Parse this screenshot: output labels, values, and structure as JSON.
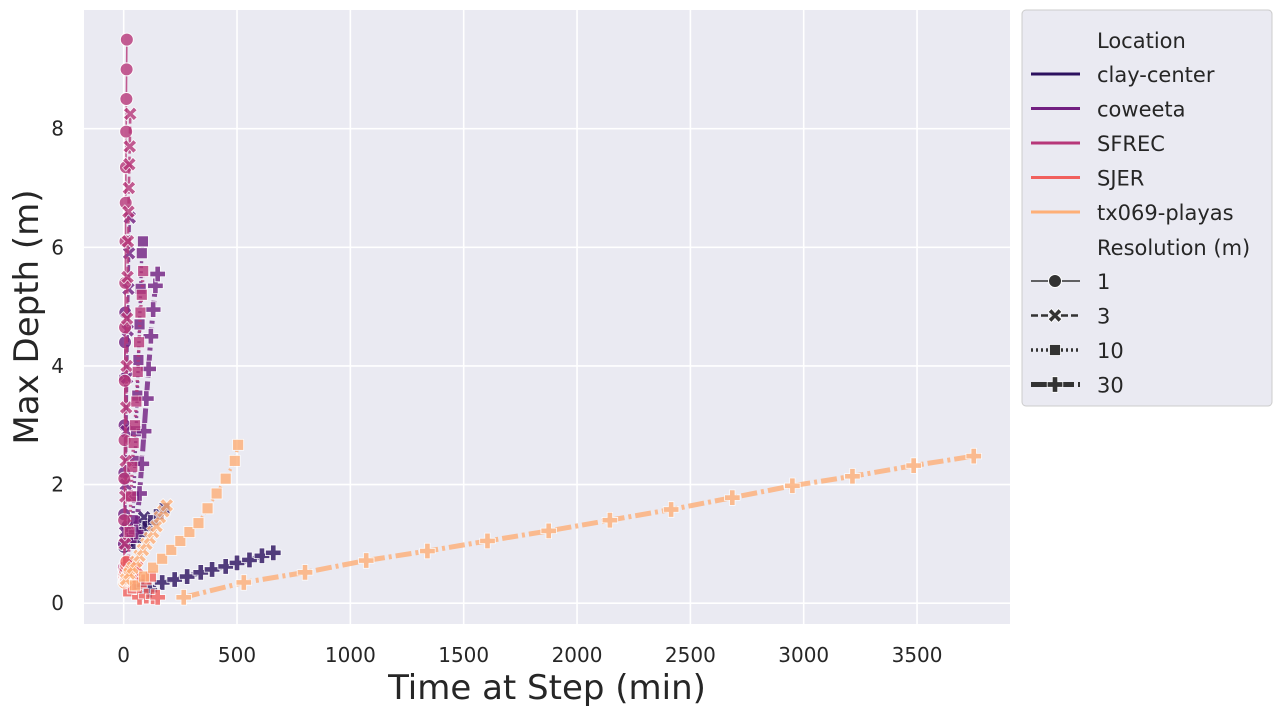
{
  "chart_data": {
    "type": "line",
    "xlabel": "Time at Step (min)",
    "ylabel": "Max Depth (m)",
    "xlim": [
      -175,
      3910
    ],
    "ylim": [
      -0.35,
      10.0
    ],
    "xticks": [
      0,
      500,
      1000,
      1500,
      2000,
      2500,
      3000,
      3500
    ],
    "yticks": [
      0,
      2,
      4,
      6,
      8
    ],
    "grid": true,
    "legend_position": "outside-right",
    "legend": {
      "hue_title": "Location",
      "locations": [
        {
          "name": "clay-center",
          "color": "#2c115f"
        },
        {
          "name": "coweeta",
          "color": "#721f81"
        },
        {
          "name": "SFREC",
          "color": "#b73779"
        },
        {
          "name": "SJER",
          "color": "#f1605d"
        },
        {
          "name": "tx069-playas",
          "color": "#feaf77"
        }
      ],
      "style_title": "Resolution (m)",
      "resolutions": [
        "1",
        "3",
        "10",
        "30"
      ]
    },
    "series": [
      {
        "location": "clay-center",
        "resolution": "1",
        "x": [
          2,
          4,
          6,
          8,
          10,
          12,
          14,
          16
        ],
        "y": [
          0.95,
          1.0,
          1.05,
          1.1,
          1.15,
          1.2,
          1.25,
          1.3
        ]
      },
      {
        "location": "clay-center",
        "resolution": "3",
        "x": [
          10,
          20,
          30,
          40,
          50,
          60,
          70,
          80,
          90
        ],
        "y": [
          1.0,
          1.05,
          1.1,
          1.15,
          1.2,
          1.25,
          1.3,
          1.38,
          1.45
        ]
      },
      {
        "location": "clay-center",
        "resolution": "10",
        "x": [
          30,
          55,
          80,
          105,
          130,
          155,
          180
        ],
        "y": [
          1.0,
          1.1,
          1.2,
          1.3,
          1.4,
          1.5,
          1.6
        ]
      },
      {
        "location": "clay-center",
        "resolution": "30",
        "x": [
          80,
          115,
          170,
          225,
          280,
          340,
          390,
          450,
          500,
          555,
          610,
          660
        ],
        "y": [
          0.28,
          0.22,
          0.35,
          0.4,
          0.45,
          0.52,
          0.57,
          0.62,
          0.68,
          0.73,
          0.8,
          0.85
        ]
      },
      {
        "location": "coweeta",
        "resolution": "1",
        "x": [
          1,
          2,
          3,
          4,
          5,
          6,
          7
        ],
        "y": [
          1.0,
          1.5,
          2.2,
          3.0,
          3.8,
          4.4,
          4.9
        ]
      },
      {
        "location": "coweeta",
        "resolution": "3",
        "x": [
          6,
          9,
          12,
          15,
          18,
          21,
          24,
          27
        ],
        "y": [
          1.2,
          2.0,
          2.9,
          3.8,
          4.6,
          5.3,
          5.9,
          6.5
        ]
      },
      {
        "location": "coweeta",
        "resolution": "10",
        "x": [
          35,
          40,
          45,
          50,
          55,
          60,
          65,
          70,
          75,
          80,
          85
        ],
        "y": [
          1.1,
          1.4,
          1.8,
          2.4,
          2.9,
          3.5,
          4.1,
          4.7,
          5.3,
          5.9,
          6.1
        ]
      },
      {
        "location": "coweeta",
        "resolution": "30",
        "x": [
          55,
          70,
          80,
          90,
          100,
          110,
          120,
          130,
          140,
          150
        ],
        "y": [
          1.2,
          1.85,
          2.35,
          2.9,
          3.45,
          3.95,
          4.5,
          4.95,
          5.35,
          5.55
        ]
      },
      {
        "location": "SFREC",
        "resolution": "1",
        "x": [
          1,
          2,
          3,
          4,
          5,
          6,
          7,
          8,
          9,
          10,
          11,
          12,
          13,
          14
        ],
        "y": [
          0.6,
          1.4,
          2.1,
          2.75,
          3.75,
          4.65,
          5.4,
          6.1,
          6.75,
          7.35,
          7.95,
          8.5,
          9.0,
          9.5
        ]
      },
      {
        "location": "SFREC",
        "resolution": "3",
        "x": [
          3,
          5,
          7,
          9,
          11,
          13,
          15,
          17,
          19,
          21,
          23,
          25,
          27,
          29
        ],
        "y": [
          0.5,
          1.0,
          1.8,
          2.4,
          3.3,
          4.0,
          4.8,
          5.5,
          6.1,
          6.6,
          7.0,
          7.4,
          7.7,
          8.25
        ]
      },
      {
        "location": "SFREC",
        "resolution": "10",
        "x": [
          20,
          26,
          32,
          38,
          44,
          50,
          56,
          62,
          68,
          74,
          80,
          86
        ],
        "y": [
          0.7,
          1.2,
          1.8,
          2.3,
          2.7,
          3.0,
          3.4,
          3.9,
          4.4,
          4.9,
          5.2,
          5.6
        ]
      },
      {
        "location": "SJER",
        "resolution": "1",
        "x": [
          2,
          4,
          6,
          8,
          10,
          12
        ],
        "y": [
          0.45,
          0.5,
          0.55,
          0.6,
          0.65,
          0.7
        ]
      },
      {
        "location": "SJER",
        "resolution": "3",
        "x": [
          10,
          20,
          30,
          40,
          50,
          60
        ],
        "y": [
          0.35,
          0.4,
          0.45,
          0.5,
          0.55,
          0.6
        ]
      },
      {
        "location": "SJER",
        "resolution": "10",
        "x": [
          20,
          40,
          60,
          80,
          100,
          120
        ],
        "y": [
          0.2,
          0.25,
          0.3,
          0.35,
          0.4,
          0.45
        ]
      },
      {
        "location": "SJER",
        "resolution": "30",
        "x": [
          70,
          100,
          130,
          150
        ],
        "y": [
          0.1,
          0.12,
          0.11,
          0.1
        ]
      },
      {
        "location": "tx069-playas",
        "resolution": "1",
        "x": [
          2,
          5,
          8,
          11,
          14,
          17,
          20,
          23,
          26
        ],
        "y": [
          0.35,
          0.38,
          0.4,
          0.42,
          0.45,
          0.47,
          0.5,
          0.52,
          0.55
        ]
      },
      {
        "location": "tx069-playas",
        "resolution": "3",
        "x": [
          10,
          25,
          40,
          55,
          70,
          85,
          100,
          115,
          130,
          145,
          160,
          175,
          190
        ],
        "y": [
          0.4,
          0.5,
          0.6,
          0.7,
          0.8,
          0.9,
          1.0,
          1.1,
          1.2,
          1.3,
          1.45,
          1.55,
          1.65
        ]
      },
      {
        "location": "tx069-playas",
        "resolution": "10",
        "x": [
          50,
          90,
          130,
          170,
          210,
          250,
          290,
          330,
          370,
          410,
          450,
          490,
          505
        ],
        "y": [
          0.3,
          0.45,
          0.6,
          0.75,
          0.9,
          1.05,
          1.2,
          1.35,
          1.6,
          1.85,
          2.1,
          2.4,
          2.67
        ]
      },
      {
        "location": "tx069-playas",
        "resolution": "30",
        "x": [
          265,
          530,
          800,
          1070,
          1340,
          1605,
          1875,
          2145,
          2415,
          2685,
          2950,
          3215,
          3485,
          3750
        ],
        "y": [
          0.1,
          0.35,
          0.52,
          0.72,
          0.88,
          1.05,
          1.22,
          1.4,
          1.58,
          1.78,
          1.98,
          2.14,
          2.32,
          2.48
        ]
      }
    ]
  }
}
